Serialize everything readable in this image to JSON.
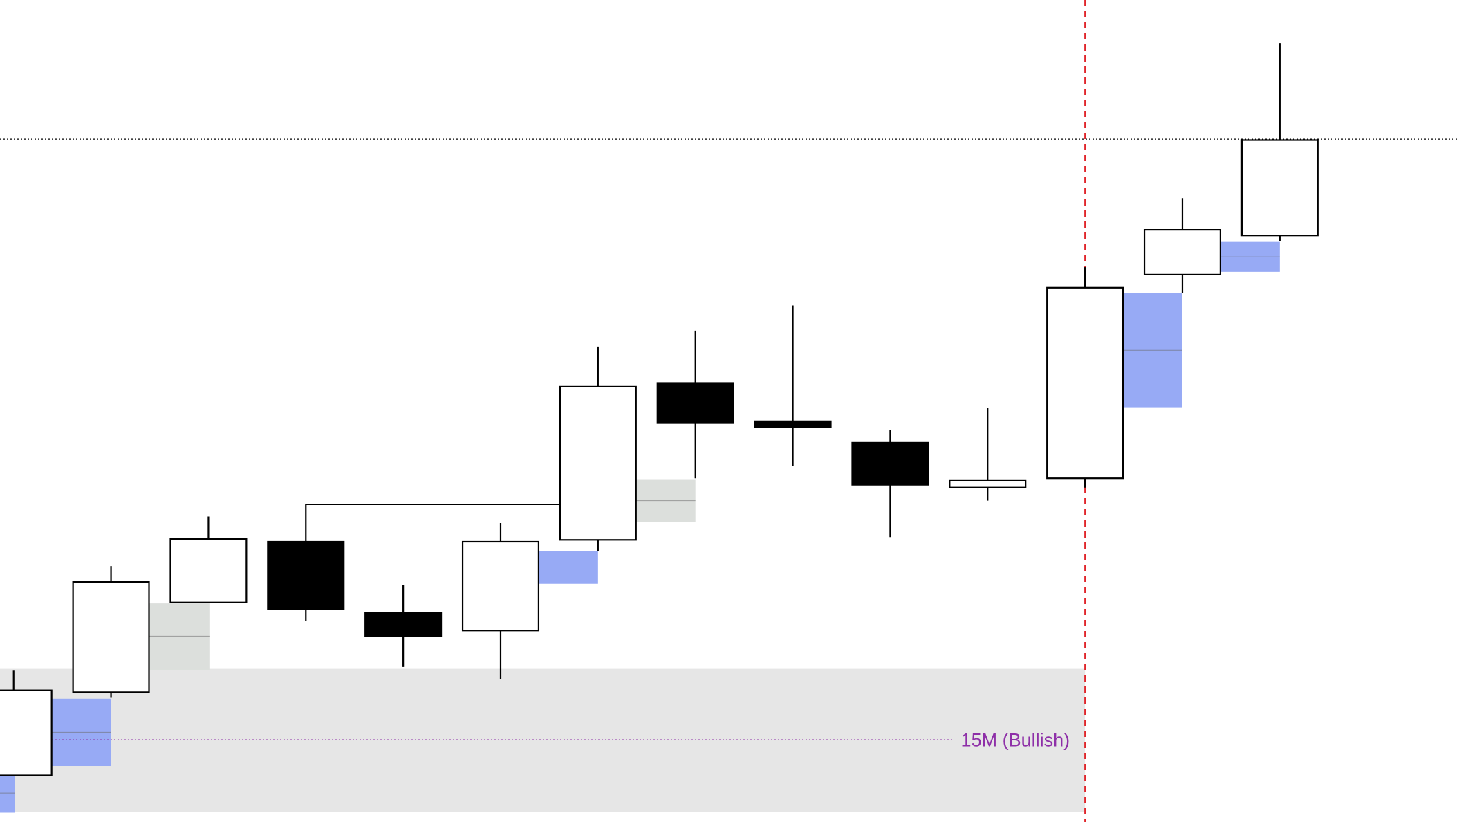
{
  "chart_data": {
    "type": "candlestick",
    "x": [
      0,
      1,
      2,
      3,
      4,
      5,
      6,
      7,
      8,
      9,
      10,
      11,
      12,
      13
    ],
    "open": [
      5.0,
      13.9,
      23.5,
      30.0,
      22.4,
      20.5,
      30.2,
      47.0,
      42.9,
      40.6,
      35.8,
      36.8,
      58.6,
      62.8
    ],
    "high": [
      16.2,
      27.4,
      32.7,
      34.0,
      25.4,
      32.0,
      50.9,
      52.6,
      55.3,
      42.0,
      44.3,
      59.4,
      66.8,
      83.4
    ],
    "low": [
      5.0,
      13.3,
      23.5,
      21.5,
      16.6,
      15.3,
      29.0,
      36.8,
      38.1,
      30.5,
      34.4,
      35.8,
      56.6,
      62.2
    ],
    "close": [
      14.1,
      25.7,
      30.3,
      22.8,
      19.9,
      30.0,
      46.6,
      42.7,
      42.3,
      36.1,
      36.6,
      57.2,
      63.4,
      73.0
    ],
    "xlim": [
      -0.14,
      14.84
    ],
    "ylim": [
      0,
      88
    ],
    "up_color": "#ffffff",
    "down_color": "#000000",
    "edge_color": "#000000",
    "zones": [
      {
        "x": [
          -0.14,
          11.0
        ],
        "y": [
          1.1,
          16.4
        ],
        "color": "#e6e6e6"
      },
      {
        "x": [
          0.39,
          1.0
        ],
        "y": [
          6.0,
          13.2
        ],
        "mid": 9.6,
        "color": "#97aaf5"
      },
      {
        "x": [
          1.39,
          2.01
        ],
        "y": [
          16.3,
          23.4
        ],
        "mid": 19.9,
        "color": "#dcdfdc"
      },
      {
        "x": [
          5.39,
          6.0
        ],
        "y": [
          25.5,
          29.0
        ],
        "mid": 27.3,
        "color": "#97aaf5"
      },
      {
        "x": [
          6.39,
          7.0
        ],
        "y": [
          32.1,
          36.7
        ],
        "mid": 34.4,
        "color": "#dcdfdc"
      },
      {
        "x": [
          11.39,
          12.0
        ],
        "y": [
          44.4,
          56.6
        ],
        "mid": 50.5,
        "color": "#97aaf5"
      },
      {
        "x": [
          12.38,
          13.0
        ],
        "y": [
          58.9,
          62.1
        ],
        "mid": 60.5,
        "color": "#97aaf5"
      },
      {
        "x": [
          -0.14,
          0.01
        ],
        "y": [
          1.0,
          5.0
        ],
        "mid": 3.1,
        "color": "#97aaf5"
      }
    ],
    "level": {
      "value": 73.1
    },
    "bias_level": {
      "value": 8.8,
      "x_end": 9.64,
      "label": "15M (Bullish)",
      "color": "#8e2fa8"
    },
    "structure_line": {
      "value": 34.0,
      "x": [
        3,
        5.6
      ]
    },
    "session_line": {
      "x": 11.0,
      "color": "#e0262b"
    }
  }
}
